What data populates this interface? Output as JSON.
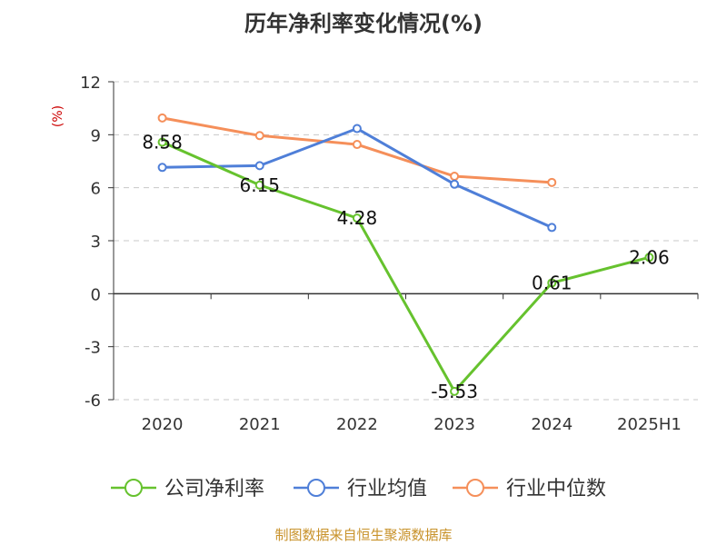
{
  "chart_data": {
    "type": "line",
    "title": "历年净利率变化情况(%)",
    "ylabel": "(%)",
    "categories": [
      "2020",
      "2021",
      "2022",
      "2023",
      "2024",
      "2025H1"
    ],
    "ylim": [
      -6,
      12
    ],
    "yticks": [
      12,
      9,
      6,
      3,
      0,
      -3,
      -6
    ],
    "grid": "horizontal dashed",
    "legend_position": "bottom",
    "series": [
      {
        "name": "公司净利率",
        "color": "#66c22e",
        "values": [
          8.58,
          6.15,
          4.28,
          -5.53,
          0.61,
          2.06
        ],
        "labels": [
          "8.58",
          "6.15",
          "4.28",
          "-5.53",
          "0.61",
          "2.06"
        ]
      },
      {
        "name": "行业均值",
        "color": "#4f7fd8",
        "values": [
          7.15,
          7.25,
          9.35,
          6.2,
          3.75,
          null
        ]
      },
      {
        "name": "行业中位数",
        "color": "#f58f5a",
        "values": [
          9.95,
          8.95,
          8.45,
          6.65,
          6.3,
          null
        ]
      }
    ]
  },
  "source": "制图数据来自恒生聚源数据库"
}
